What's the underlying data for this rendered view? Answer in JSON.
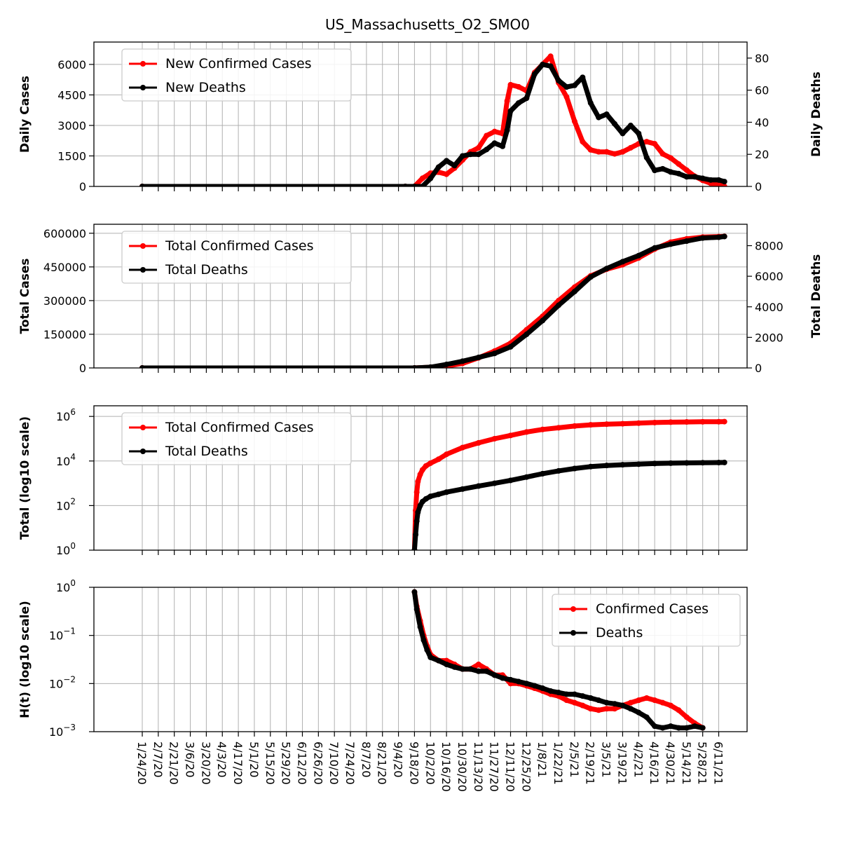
{
  "title": "US_Massachusetts_O2_SMO0",
  "x_tick_labels": [
    "1/24/20",
    "2/7/20",
    "2/21/20",
    "3/6/20",
    "3/20/20",
    "4/3/20",
    "4/17/20",
    "5/1/20",
    "5/15/20",
    "5/29/20",
    "6/12/20",
    "6/26/20",
    "7/10/20",
    "7/24/20",
    "8/7/20",
    "8/21/20",
    "9/4/20",
    "9/18/20",
    "10/2/20",
    "10/16/20",
    "10/30/20",
    "11/13/20",
    "11/27/20",
    "12/11/20",
    "12/25/20",
    "1/8/21",
    "1/22/21",
    "2/5/21",
    "2/19/21",
    "3/5/21",
    "3/19/21",
    "4/2/21",
    "4/16/21",
    "4/30/21",
    "5/14/21",
    "5/28/21",
    "6/11/21"
  ],
  "colors": {
    "confirmed": "#ff0000",
    "deaths": "#000000",
    "grid": "#b0b0b0"
  },
  "chart_data": [
    {
      "type": "line",
      "panel": "daily",
      "ylabel": "Daily Cases",
      "ylabel_right": "Daily Deaths",
      "ylim": [
        0,
        7100
      ],
      "ylim_right": [
        0,
        90
      ],
      "yticks": [
        0,
        1500,
        3000,
        4500,
        6000
      ],
      "yticks_right": [
        0,
        20,
        40,
        60,
        80
      ],
      "legend_position": "upper-left",
      "x": [
        "1/24/20",
        "9/10/20",
        "9/18/20",
        "9/25/20",
        "10/2/20",
        "10/9/20",
        "10/16/20",
        "10/23/20",
        "10/30/20",
        "11/6/20",
        "11/13/20",
        "11/20/20",
        "11/27/20",
        "12/4/20",
        "12/8/20",
        "12/11/20",
        "12/18/20",
        "12/25/20",
        "1/1/21",
        "1/8/21",
        "1/15/21",
        "1/22/21",
        "1/29/21",
        "2/5/21",
        "2/12/21",
        "2/19/21",
        "2/26/21",
        "3/5/21",
        "3/12/21",
        "3/19/21",
        "3/26/21",
        "4/2/21",
        "4/9/21",
        "4/16/21",
        "4/23/21",
        "4/30/21",
        "5/7/21",
        "5/14/21",
        "5/21/21",
        "5/28/21",
        "6/4/21",
        "6/11/21",
        "6/16/21"
      ],
      "series": [
        {
          "name": "New Confirmed Cases",
          "axis": "left",
          "values": [
            0,
            0,
            0,
            400,
            650,
            700,
            600,
            900,
            1300,
            1700,
            1900,
            2500,
            2700,
            2600,
            4200,
            5000,
            4900,
            4700,
            5600,
            6000,
            6400,
            5100,
            4400,
            3200,
            2200,
            1800,
            1700,
            1700,
            1600,
            1700,
            1900,
            2100,
            2200,
            2100,
            1600,
            1400,
            1100,
            800,
            500,
            300,
            150,
            100,
            0
          ]
        },
        {
          "name": "New Deaths",
          "axis": "left2",
          "values": [
            0,
            0,
            0,
            0,
            5,
            12,
            16,
            13,
            19,
            20,
            20,
            23,
            27,
            25,
            35,
            47,
            52,
            55,
            70,
            76,
            75,
            66,
            62,
            63,
            68,
            52,
            43,
            45,
            39,
            33,
            38,
            33,
            18,
            10,
            11,
            9,
            8,
            6,
            6,
            5,
            4,
            4,
            3
          ]
        }
      ]
    },
    {
      "type": "line",
      "panel": "total",
      "ylabel": "Total Cases",
      "ylabel_right": "Total Deaths",
      "ylim": [
        0,
        640000
      ],
      "ylim_right": [
        0,
        9400
      ],
      "yticks": [
        0,
        150000,
        300000,
        450000,
        600000
      ],
      "yticks_right": [
        0,
        2000,
        4000,
        6000,
        8000
      ],
      "legend_position": "upper-left",
      "x": [
        "1/24/20",
        "9/18/20",
        "10/2/20",
        "10/16/20",
        "10/30/20",
        "11/13/20",
        "11/27/20",
        "12/11/20",
        "12/25/20",
        "1/8/21",
        "1/22/21",
        "2/5/21",
        "2/19/21",
        "3/5/21",
        "3/19/21",
        "4/2/21",
        "4/16/21",
        "4/30/21",
        "5/14/21",
        "5/28/21",
        "6/11/21",
        "6/16/21"
      ],
      "series": [
        {
          "name": "Total Confirmed Cases",
          "axis": "left",
          "values": [
            0,
            0,
            3000,
            8000,
            20000,
            45000,
            75000,
            110000,
            170000,
            230000,
            300000,
            360000,
            410000,
            440000,
            460000,
            490000,
            530000,
            560000,
            575000,
            583000,
            585000,
            586000
          ]
        },
        {
          "name": "Total Deaths",
          "axis": "right",
          "values": [
            0,
            0,
            50,
            230,
            440,
            690,
            950,
            1380,
            2200,
            3100,
            4100,
            5000,
            5950,
            6500,
            6950,
            7350,
            7850,
            8100,
            8300,
            8500,
            8550,
            8600
          ]
        }
      ]
    },
    {
      "type": "line",
      "panel": "log-total",
      "ylabel": "Total (log10 scale)",
      "yscale": "log",
      "ylim": [
        1,
        3000000
      ],
      "yticks": [
        1,
        100,
        10000,
        1000000
      ],
      "legend_position": "upper-left",
      "x": [
        "9/18/20",
        "9/19/20",
        "9/20/20",
        "9/21/20",
        "9/23/20",
        "9/25/20",
        "9/28/20",
        "10/2/20",
        "10/9/20",
        "10/16/20",
        "10/30/20",
        "11/13/20",
        "11/27/20",
        "12/11/20",
        "12/25/20",
        "1/8/21",
        "1/22/21",
        "2/5/21",
        "2/19/21",
        "3/5/21",
        "3/19/21",
        "4/2/21",
        "4/16/21",
        "4/30/21",
        "5/14/21",
        "5/28/21",
        "6/11/21",
        "6/16/21"
      ],
      "series": [
        {
          "name": "Total Confirmed Cases",
          "values": [
            1,
            60,
            400,
            1200,
            2500,
            4000,
            6000,
            8000,
            12000,
            20000,
            40000,
            65000,
            100000,
            140000,
            200000,
            260000,
            310000,
            370000,
            420000,
            450000,
            470000,
            500000,
            530000,
            550000,
            565000,
            575000,
            580000,
            585000
          ]
        },
        {
          "name": "Total Deaths",
          "values": [
            1,
            5,
            20,
            50,
            100,
            150,
            200,
            260,
            320,
            400,
            550,
            750,
            1000,
            1350,
            1900,
            2700,
            3600,
            4600,
            5600,
            6300,
            6800,
            7200,
            7700,
            8000,
            8200,
            8400,
            8500,
            8600
          ]
        }
      ]
    },
    {
      "type": "line",
      "panel": "hazard",
      "ylabel": "H(t) (log10 scale)",
      "yscale": "log",
      "ylim": [
        0.001,
        1
      ],
      "yticks": [
        0.001,
        0.01,
        0.1,
        1
      ],
      "legend_position": "upper-right",
      "x": [
        "9/18/20",
        "9/20/20",
        "9/23/20",
        "9/26/20",
        "9/29/20",
        "10/2/20",
        "10/9/20",
        "10/16/20",
        "10/23/20",
        "10/30/20",
        "11/6/20",
        "11/13/20",
        "11/20/20",
        "11/27/20",
        "12/4/20",
        "12/11/20",
        "12/18/20",
        "12/25/20",
        "1/1/21",
        "1/8/21",
        "1/15/21",
        "1/22/21",
        "1/29/21",
        "2/5/21",
        "2/12/21",
        "2/19/21",
        "2/26/21",
        "3/5/21",
        "3/12/21",
        "3/19/21",
        "3/26/21",
        "4/2/21",
        "4/9/21",
        "4/16/21",
        "4/23/21",
        "4/30/21",
        "5/7/21",
        "5/14/21",
        "5/21/21",
        "5/28/21"
      ],
      "series": [
        {
          "name": "Confirmed Cases",
          "values": [
            0.8,
            0.4,
            0.2,
            0.1,
            0.06,
            0.04,
            0.03,
            0.03,
            0.025,
            0.02,
            0.02,
            0.025,
            0.02,
            0.015,
            0.015,
            0.01,
            0.01,
            0.009,
            0.008,
            0.007,
            0.006,
            0.0055,
            0.0045,
            0.004,
            0.0035,
            0.003,
            0.0028,
            0.003,
            0.003,
            0.0035,
            0.004,
            0.0045,
            0.005,
            0.0045,
            0.004,
            0.0035,
            0.0028,
            0.002,
            0.0015,
            0.0012
          ]
        },
        {
          "name": "Deaths",
          "values": [
            0.8,
            0.35,
            0.15,
            0.08,
            0.05,
            0.035,
            0.03,
            0.025,
            0.022,
            0.02,
            0.02,
            0.018,
            0.018,
            0.015,
            0.013,
            0.012,
            0.011,
            0.01,
            0.009,
            0.008,
            0.007,
            0.0065,
            0.006,
            0.006,
            0.0055,
            0.005,
            0.0045,
            0.004,
            0.0038,
            0.0035,
            0.003,
            0.0025,
            0.002,
            0.0013,
            0.0012,
            0.0013,
            0.0012,
            0.0012,
            0.0013,
            0.0012
          ]
        }
      ]
    }
  ]
}
